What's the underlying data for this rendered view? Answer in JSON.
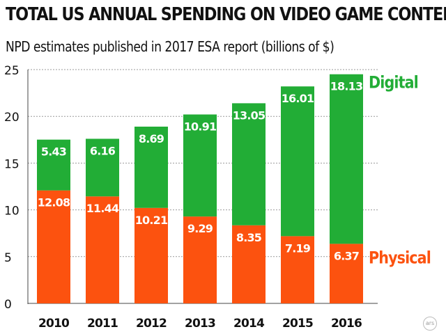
{
  "title": "TOTAL US ANNUAL SPENDING ON VIDEO GAME CONTENT",
  "subtitle": "NPD estimates published in 2017 ESA report (billions of $)",
  "logo_text": "ars",
  "chart_data": {
    "type": "bar",
    "stacked": true,
    "categories": [
      "2010",
      "2011",
      "2012",
      "2013",
      "2014",
      "2015",
      "2016"
    ],
    "series": [
      {
        "name": "Physical",
        "color": "#fc520f",
        "values": [
          12.08,
          11.44,
          10.21,
          9.29,
          8.35,
          7.19,
          6.37
        ]
      },
      {
        "name": "Digital",
        "color": "#22ad36",
        "values": [
          5.43,
          6.16,
          8.69,
          10.91,
          13.05,
          16.01,
          18.13
        ]
      }
    ],
    "data_labels": true,
    "title": "TOTAL US ANNUAL SPENDING ON VIDEO GAME CONTENT",
    "subtitle": "NPD estimates published in 2017 ESA report (billions of $)",
    "xlabel": "",
    "ylabel": "",
    "ylim": [
      0,
      25
    ],
    "yticks": [
      0,
      5,
      10,
      15,
      20,
      25
    ],
    "grid": true,
    "legend": "right, labels beside last bar"
  }
}
